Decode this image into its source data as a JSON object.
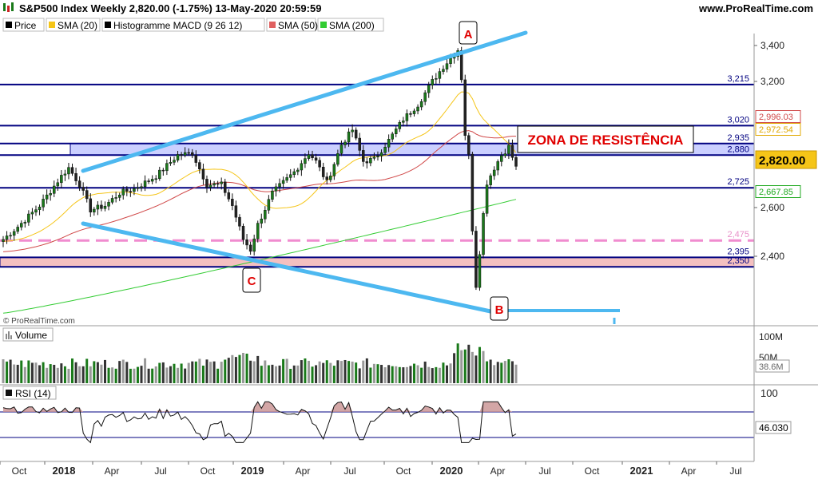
{
  "header": {
    "title": "S&P500 Index Weekly 2,820.00 (-1.75%) 13-May-2020 20:59:59",
    "site": "www.ProRealTime.com",
    "copyright": "© ProRealTime.com"
  },
  "legend": [
    {
      "label": "Price",
      "color": "#000000"
    },
    {
      "label": "SMA (20)",
      "color": "#f5c518"
    },
    {
      "label": "Histogramme MACD (9 26 12)",
      "color": "#000000"
    },
    {
      "label": "SMA (50)",
      "color": "#e06060"
    },
    {
      "label": "SMA (200)",
      "color": "#33cc33"
    }
  ],
  "colors": {
    "up": "#1a7a1a",
    "down": "#222222",
    "sma20": "#f5c518",
    "sma50": "#d04848",
    "sma200": "#33cc33",
    "trend": "#4db8f0",
    "level": "#000080",
    "dashed": "#f08ccf",
    "zone": "#a8b0ff",
    "support_zone": "#f4c0c0",
    "annot": "#e00000"
  },
  "chart_data": {
    "type": "candlestick",
    "y_ticks": [
      "3,400",
      "3,200",
      "2,600",
      "2,400"
    ],
    "x_ticks": [
      {
        "label": "Oct",
        "bold": false
      },
      {
        "label": "2018",
        "bold": true
      },
      {
        "label": "Apr",
        "bold": false
      },
      {
        "label": "Jul",
        "bold": false
      },
      {
        "label": "Oct",
        "bold": false
      },
      {
        "label": "2019",
        "bold": true
      },
      {
        "label": "Apr",
        "bold": false
      },
      {
        "label": "Jul",
        "bold": false
      },
      {
        "label": "Oct",
        "bold": false
      },
      {
        "label": "2020",
        "bold": true
      },
      {
        "label": "Apr",
        "bold": false
      },
      {
        "label": "Jul",
        "bold": false
      },
      {
        "label": "Oct",
        "bold": false
      },
      {
        "label": "2021",
        "bold": true
      },
      {
        "label": "Apr",
        "bold": false
      },
      {
        "label": "Jul",
        "bold": false
      }
    ],
    "levels": [
      {
        "value": 3215,
        "label": "3,215"
      },
      {
        "value": 3020,
        "label": "3,020"
      },
      {
        "value": 2935,
        "label": "2,935"
      },
      {
        "value": 2880,
        "label": "2,880"
      },
      {
        "value": 2725,
        "label": "2,725"
      },
      {
        "value": 2475,
        "label": "2,475"
      },
      {
        "value": 2395,
        "label": "2,395"
      },
      {
        "value": 2350,
        "label": "2,350"
      }
    ],
    "price_tags": [
      {
        "label": "2,996.03"
      },
      {
        "label": "2,972.54"
      },
      {
        "label": "2,820.00"
      },
      {
        "label": "2,667.85"
      }
    ],
    "annotations": [
      {
        "label": "A"
      },
      {
        "label": "B"
      },
      {
        "label": "C"
      },
      {
        "label": "ZONA DE RESISTÊNCIA"
      }
    ],
    "volume": {
      "title": "Volume",
      "ticks": [
        "100M",
        "50M"
      ],
      "last": "38.6M"
    },
    "rsi": {
      "title": "RSI (14)",
      "ticks": [
        "100"
      ],
      "last": "46.030",
      "upper": 70,
      "lower": 30
    }
  }
}
